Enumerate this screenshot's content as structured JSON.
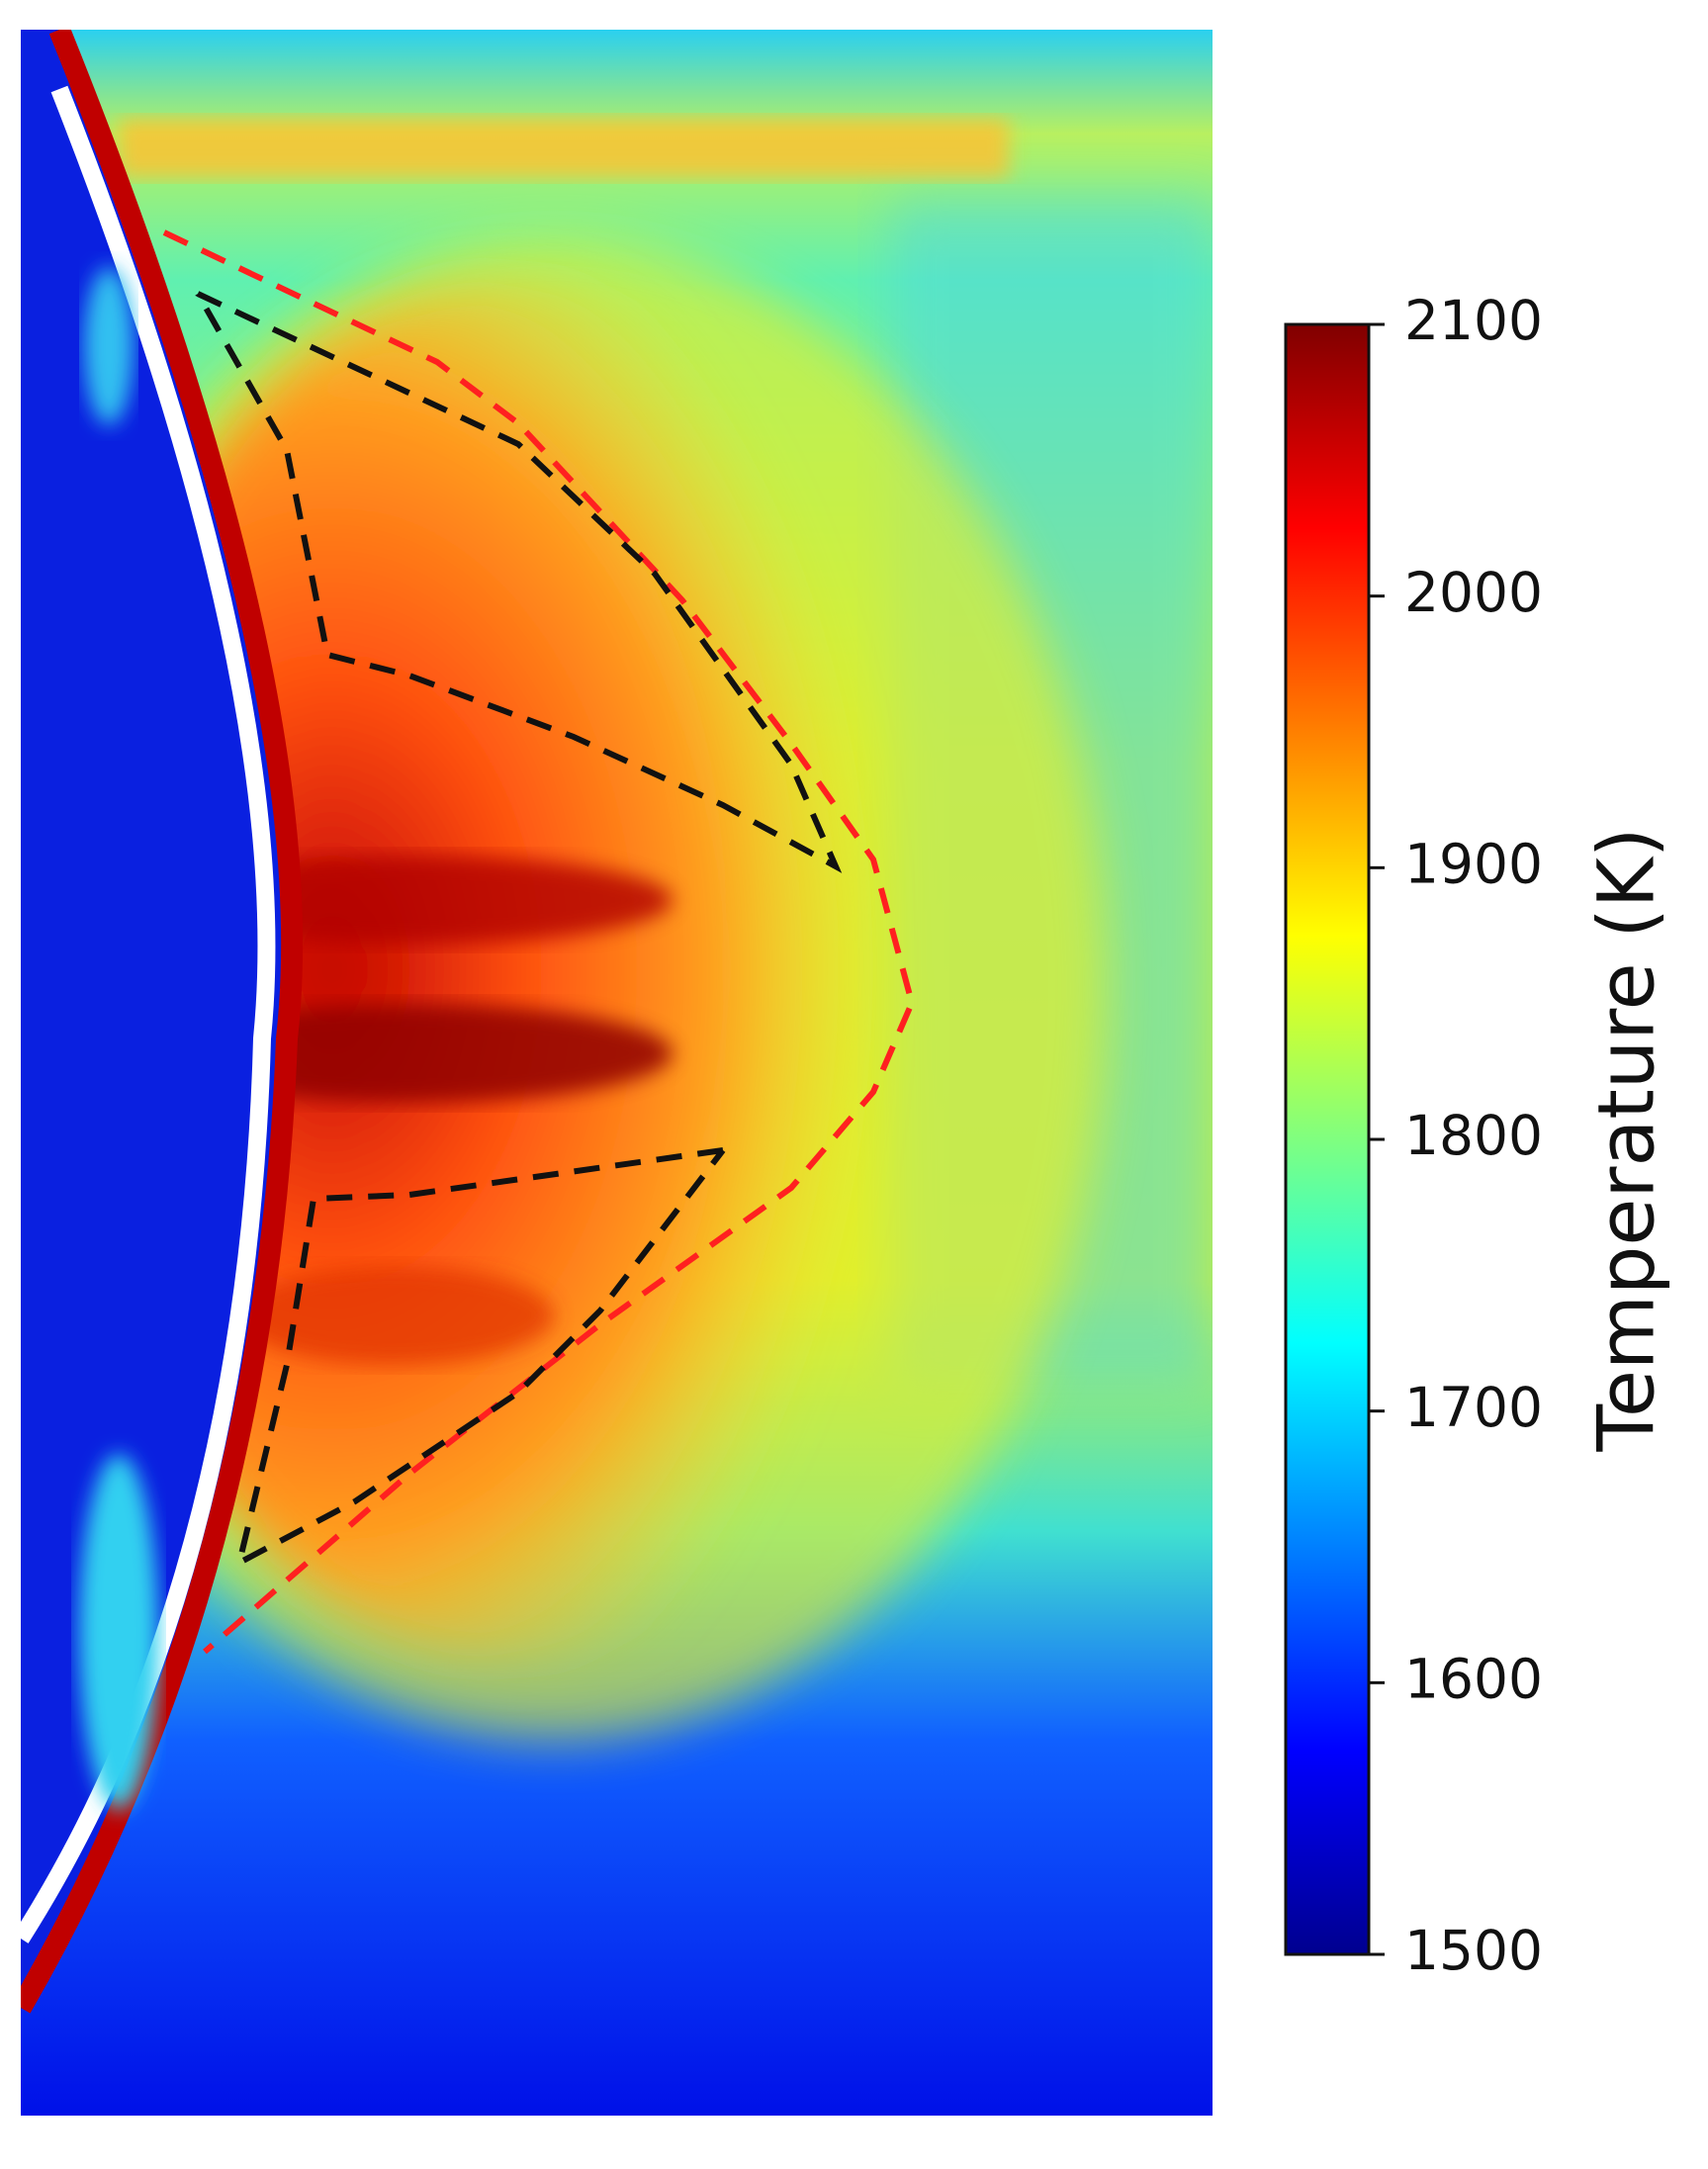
{
  "chart_data": {
    "type": "heatmap",
    "colormap": "jet",
    "colorbar_label": "Temperature (K)",
    "clim": [
      1500,
      2100
    ],
    "cticks": [
      1500,
      1600,
      1700,
      1800,
      1900,
      2000,
      2100
    ]
  }
}
